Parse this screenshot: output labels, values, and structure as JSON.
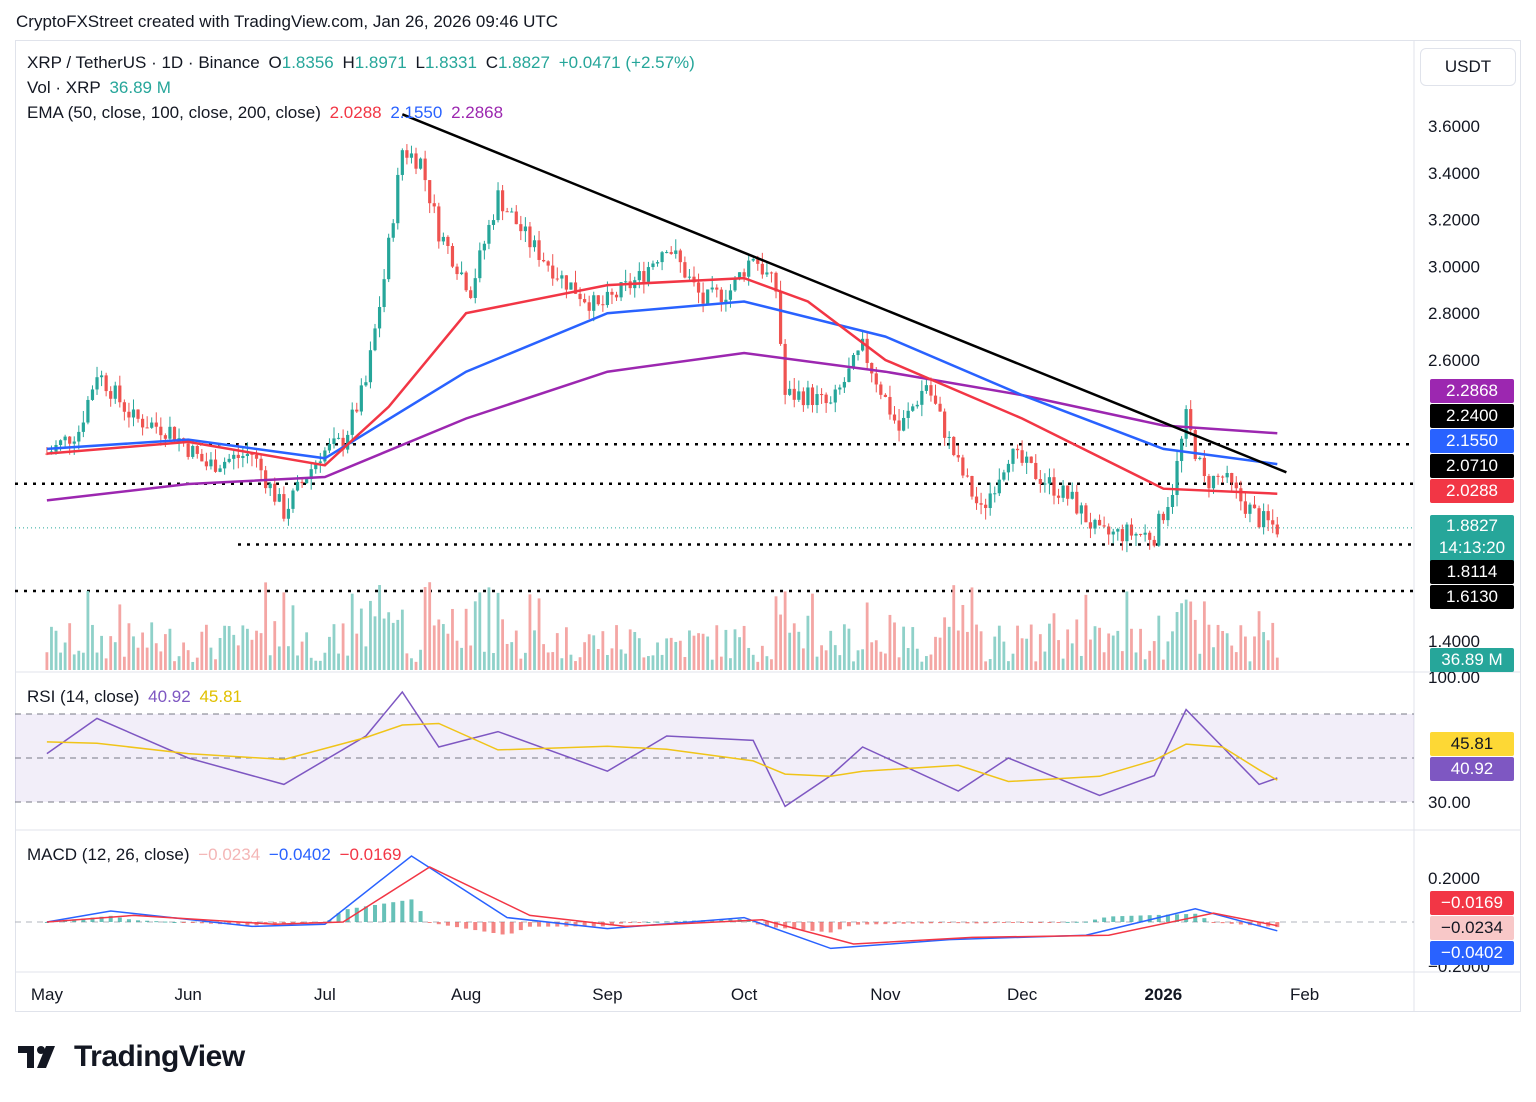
{
  "header": {
    "caption": "CryptoFXStreet created with TradingView.com, Jan 26, 2026 09:46 UTC"
  },
  "currency_button": "USDT",
  "legend": {
    "symbol": "XRP / TetherUS · 1D · Binance",
    "o_label": "O",
    "o_value": "1.8356",
    "h_label": "H",
    "h_value": "1.8971",
    "l_label": "L",
    "l_value": "1.8331",
    "c_label": "C",
    "c_value": "1.8827",
    "change": "+0.0471 (+2.57%)",
    "vol_label": "Vol · XRP",
    "vol_value": "36.89 M",
    "ema_label": "EMA (50, close, 100, close, 200, close)",
    "ema50": "2.0288",
    "ema100": "2.1550",
    "ema200": "2.2868",
    "rsi_label": "RSI (14, close)",
    "rsi_value": "40.92",
    "rsi_ma": "45.81",
    "macd_label": "MACD (12, 26, close)",
    "macd_hist": "−0.0234",
    "macd_line": "−0.0402",
    "macd_signal": "−0.0169"
  },
  "colors": {
    "up": "#26a69a",
    "down": "#ef5350",
    "ema50": "#f23645",
    "ema100": "#2962ff",
    "ema200": "#9c27b0",
    "rsi": "#7e57c2",
    "rsi_ma": "#fdd835",
    "macd": "#2962ff",
    "signal": "#f23645"
  },
  "price_tags": [
    {
      "label": "2.2868",
      "color": "#9c27b0"
    },
    {
      "label": "2.2400",
      "color": "#000000"
    },
    {
      "label": "2.1550",
      "color": "#2962ff"
    },
    {
      "label": "2.0710",
      "color": "#000000"
    },
    {
      "label": "2.0288",
      "color": "#f23645"
    },
    {
      "label": "1.8827",
      "sub": "14:13:20",
      "color": "#26a69a"
    },
    {
      "label": "1.8114",
      "color": "#000000"
    },
    {
      "label": "1.6130",
      "color": "#000000"
    },
    {
      "label": "36.89 M",
      "color": "#26a69a"
    }
  ],
  "rsi_tags": [
    {
      "label": "45.81",
      "color": "#fdd835",
      "text": "#131722"
    },
    {
      "label": "40.92",
      "color": "#7e57c2",
      "text": "#ffffff"
    }
  ],
  "macd_tags": [
    {
      "label": "−0.0169",
      "color": "#f23645",
      "text": "#ffffff"
    },
    {
      "label": "−0.0234",
      "color": "#f8c8c8",
      "text": "#131722"
    },
    {
      "label": "−0.0402",
      "color": "#2962ff",
      "text": "#ffffff"
    }
  ],
  "brand": "TradingView",
  "chart_data": {
    "type": "candlestick",
    "price_axis_ticks": [
      "3.6000",
      "3.4000",
      "3.2000",
      "3.0000",
      "2.8000",
      "2.6000",
      "1.4000"
    ],
    "rsi_axis_ticks": [
      "100.00",
      "30.00"
    ],
    "macd_axis_ticks": [
      "0.2000",
      "−0.2000"
    ],
    "x_ticks": [
      "May",
      "Jun",
      "Jul",
      "Aug",
      "Sep",
      "Oct",
      "Nov",
      "Dec",
      "2026",
      "Feb"
    ],
    "horizontal_levels": [
      2.24,
      2.071,
      1.8114,
      1.613
    ],
    "trendline": [
      {
        "x": "2025-07-18",
        "y": 3.65
      },
      {
        "x": "2026-01-28",
        "y": 2.12
      }
    ],
    "close_series": [
      {
        "x": "2025-05-01",
        "y": 2.2
      },
      {
        "x": "2025-05-08",
        "y": 2.3
      },
      {
        "x": "2025-05-12",
        "y": 2.55
      },
      {
        "x": "2025-05-20",
        "y": 2.35
      },
      {
        "x": "2025-05-28",
        "y": 2.3
      },
      {
        "x": "2025-06-05",
        "y": 2.15
      },
      {
        "x": "2025-06-15",
        "y": 2.2
      },
      {
        "x": "2025-06-22",
        "y": 1.95
      },
      {
        "x": "2025-06-30",
        "y": 2.2
      },
      {
        "x": "2025-07-05",
        "y": 2.25
      },
      {
        "x": "2025-07-10",
        "y": 2.5
      },
      {
        "x": "2025-07-14",
        "y": 2.95
      },
      {
        "x": "2025-07-18",
        "y": 3.5
      },
      {
        "x": "2025-07-22",
        "y": 3.45
      },
      {
        "x": "2025-07-26",
        "y": 3.15
      },
      {
        "x": "2025-08-02",
        "y": 2.9
      },
      {
        "x": "2025-08-08",
        "y": 3.3
      },
      {
        "x": "2025-08-15",
        "y": 3.1
      },
      {
        "x": "2025-08-22",
        "y": 2.95
      },
      {
        "x": "2025-08-30",
        "y": 2.82
      },
      {
        "x": "2025-09-08",
        "y": 2.95
      },
      {
        "x": "2025-09-14",
        "y": 3.1
      },
      {
        "x": "2025-09-22",
        "y": 2.85
      },
      {
        "x": "2025-09-28",
        "y": 2.9
      },
      {
        "x": "2025-10-03",
        "y": 3.05
      },
      {
        "x": "2025-10-08",
        "y": 2.9
      },
      {
        "x": "2025-10-10",
        "y": 2.45
      },
      {
        "x": "2025-10-15",
        "y": 2.45
      },
      {
        "x": "2025-10-20",
        "y": 2.4
      },
      {
        "x": "2025-10-27",
        "y": 2.65
      },
      {
        "x": "2025-11-04",
        "y": 2.3
      },
      {
        "x": "2025-11-10",
        "y": 2.5
      },
      {
        "x": "2025-11-17",
        "y": 2.15
      },
      {
        "x": "2025-11-22",
        "y": 1.95
      },
      {
        "x": "2025-11-28",
        "y": 2.2
      },
      {
        "x": "2025-12-05",
        "y": 2.1
      },
      {
        "x": "2025-12-12",
        "y": 2.0
      },
      {
        "x": "2025-12-18",
        "y": 1.85
      },
      {
        "x": "2025-12-24",
        "y": 1.86
      },
      {
        "x": "2025-12-30",
        "y": 1.85
      },
      {
        "x": "2026-01-03",
        "y": 2.05
      },
      {
        "x": "2026-01-06",
        "y": 2.35
      },
      {
        "x": "2026-01-10",
        "y": 2.08
      },
      {
        "x": "2026-01-14",
        "y": 2.1
      },
      {
        "x": "2026-01-18",
        "y": 2.0
      },
      {
        "x": "2026-01-22",
        "y": 1.92
      },
      {
        "x": "2026-01-26",
        "y": 1.8827
      }
    ],
    "ema50": [
      {
        "x": "2025-05-01",
        "y": 2.2
      },
      {
        "x": "2025-06-01",
        "y": 2.25
      },
      {
        "x": "2025-07-01",
        "y": 2.15
      },
      {
        "x": "2025-07-15",
        "y": 2.4
      },
      {
        "x": "2025-08-01",
        "y": 2.8
      },
      {
        "x": "2025-09-01",
        "y": 2.92
      },
      {
        "x": "2025-10-01",
        "y": 2.95
      },
      {
        "x": "2025-10-15",
        "y": 2.85
      },
      {
        "x": "2025-11-01",
        "y": 2.6
      },
      {
        "x": "2025-12-01",
        "y": 2.35
      },
      {
        "x": "2026-01-01",
        "y": 2.05
      },
      {
        "x": "2026-01-26",
        "y": 2.0288
      }
    ],
    "ema100": [
      {
        "x": "2025-05-01",
        "y": 2.22
      },
      {
        "x": "2025-06-01",
        "y": 2.26
      },
      {
        "x": "2025-07-01",
        "y": 2.18
      },
      {
        "x": "2025-08-01",
        "y": 2.55
      },
      {
        "x": "2025-09-01",
        "y": 2.8
      },
      {
        "x": "2025-10-01",
        "y": 2.85
      },
      {
        "x": "2025-11-01",
        "y": 2.7
      },
      {
        "x": "2025-12-01",
        "y": 2.45
      },
      {
        "x": "2026-01-01",
        "y": 2.22
      },
      {
        "x": "2026-01-26",
        "y": 2.155
      }
    ],
    "ema200": [
      {
        "x": "2025-05-01",
        "y": 2.0
      },
      {
        "x": "2025-06-01",
        "y": 2.07
      },
      {
        "x": "2025-07-01",
        "y": 2.1
      },
      {
        "x": "2025-08-01",
        "y": 2.35
      },
      {
        "x": "2025-09-01",
        "y": 2.55
      },
      {
        "x": "2025-10-01",
        "y": 2.63
      },
      {
        "x": "2025-11-01",
        "y": 2.55
      },
      {
        "x": "2025-12-01",
        "y": 2.45
      },
      {
        "x": "2026-01-01",
        "y": 2.32
      },
      {
        "x": "2026-01-26",
        "y": 2.2868
      }
    ],
    "rsi": [
      {
        "x": "2025-05-01",
        "y": 52
      },
      {
        "x": "2025-05-12",
        "y": 68
      },
      {
        "x": "2025-06-01",
        "y": 50
      },
      {
        "x": "2025-06-22",
        "y": 38
      },
      {
        "x": "2025-07-10",
        "y": 60
      },
      {
        "x": "2025-07-18",
        "y": 80
      },
      {
        "x": "2025-07-26",
        "y": 55
      },
      {
        "x": "2025-08-08",
        "y": 62
      },
      {
        "x": "2025-09-01",
        "y": 44
      },
      {
        "x": "2025-09-14",
        "y": 60
      },
      {
        "x": "2025-10-03",
        "y": 58
      },
      {
        "x": "2025-10-10",
        "y": 28
      },
      {
        "x": "2025-10-20",
        "y": 42
      },
      {
        "x": "2025-10-27",
        "y": 55
      },
      {
        "x": "2025-11-17",
        "y": 35
      },
      {
        "x": "2025-11-28",
        "y": 50
      },
      {
        "x": "2025-12-18",
        "y": 33
      },
      {
        "x": "2025-12-30",
        "y": 42
      },
      {
        "x": "2026-01-06",
        "y": 72
      },
      {
        "x": "2026-01-14",
        "y": 55
      },
      {
        "x": "2026-01-22",
        "y": 38
      },
      {
        "x": "2026-01-26",
        "y": 40.92
      }
    ],
    "macd": [
      {
        "x": "2025-05-01",
        "y": 0.0
      },
      {
        "x": "2025-05-15",
        "y": 0.05
      },
      {
        "x": "2025-06-15",
        "y": -0.02
      },
      {
        "x": "2025-07-01",
        "y": -0.01
      },
      {
        "x": "2025-07-20",
        "y": 0.3
      },
      {
        "x": "2025-08-10",
        "y": 0.02
      },
      {
        "x": "2025-09-01",
        "y": -0.03
      },
      {
        "x": "2025-10-01",
        "y": 0.02
      },
      {
        "x": "2025-10-20",
        "y": -0.12
      },
      {
        "x": "2025-11-15",
        "y": -0.08
      },
      {
        "x": "2025-12-15",
        "y": -0.06
      },
      {
        "x": "2026-01-08",
        "y": 0.06
      },
      {
        "x": "2026-01-26",
        "y": -0.0402
      }
    ],
    "signal": [
      {
        "x": "2025-05-01",
        "y": 0.0
      },
      {
        "x": "2025-05-20",
        "y": 0.03
      },
      {
        "x": "2025-06-20",
        "y": -0.01
      },
      {
        "x": "2025-07-05",
        "y": 0.0
      },
      {
        "x": "2025-07-24",
        "y": 0.25
      },
      {
        "x": "2025-08-15",
        "y": 0.03
      },
      {
        "x": "2025-09-05",
        "y": -0.02
      },
      {
        "x": "2025-10-05",
        "y": 0.01
      },
      {
        "x": "2025-10-25",
        "y": -0.1
      },
      {
        "x": "2025-11-20",
        "y": -0.07
      },
      {
        "x": "2025-12-20",
        "y": -0.06
      },
      {
        "x": "2026-01-12",
        "y": 0.04
      },
      {
        "x": "2026-01-26",
        "y": -0.0169
      }
    ]
  }
}
